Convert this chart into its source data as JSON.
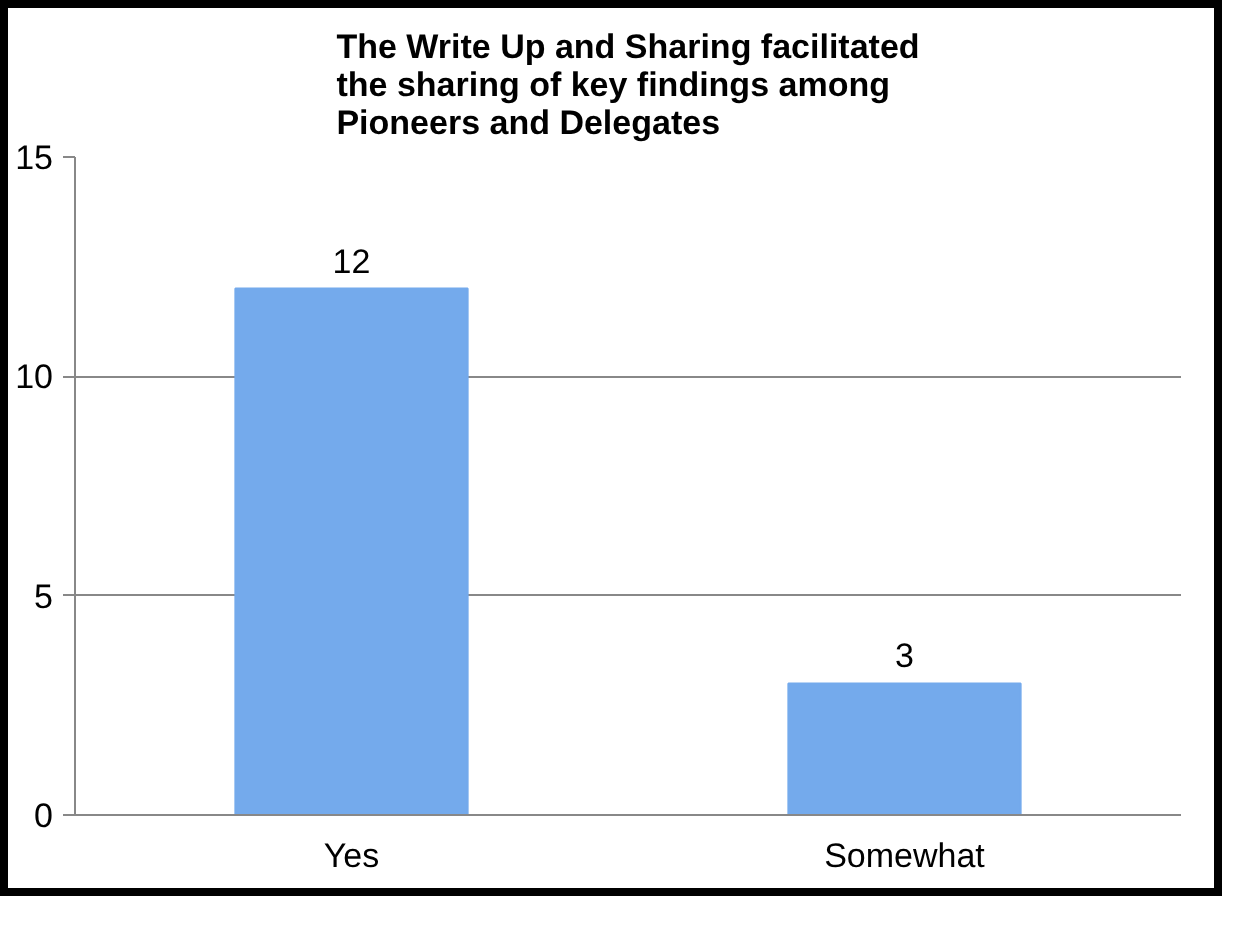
{
  "chart_data": {
    "type": "bar",
    "title": "The Write Up and Sharing facilitated the sharing of key findings among Pioneers and Delegates",
    "categories": [
      "Yes",
      "Somewhat"
    ],
    "values": [
      12,
      3
    ],
    "color": "#74aaec",
    "ylim": [
      0,
      15
    ],
    "yticks": [
      0,
      5,
      10,
      15
    ],
    "grid": "y",
    "data_labels": true
  }
}
